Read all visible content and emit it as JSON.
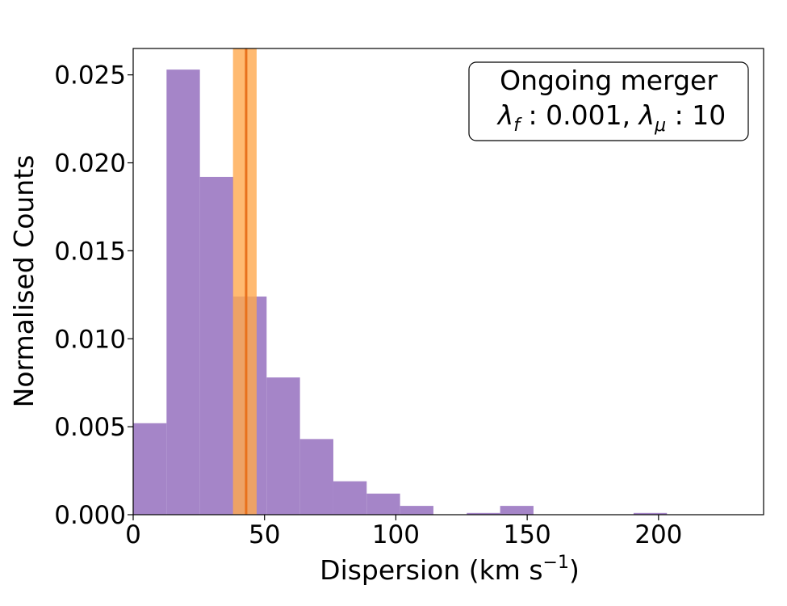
{
  "chart_data": {
    "type": "bar",
    "subtype": "histogram",
    "xlabel": "Dispersion (km s",
    "xlabel_sup": "−1",
    "xlabel_close": ")",
    "ylabel": "Normalised Counts",
    "xlim": [
      0,
      240
    ],
    "ylim": [
      0,
      0.0265
    ],
    "xticks": [
      0,
      50,
      100,
      150,
      200
    ],
    "xtick_labels": [
      "0",
      "50",
      "100",
      "150",
      "200"
    ],
    "yticks": [
      0,
      0.005,
      0.01,
      0.015,
      0.02,
      0.025
    ],
    "ytick_labels": [
      "0.000",
      "0.005",
      "0.010",
      "0.015",
      "0.020",
      "0.025"
    ],
    "bin_width": 12.7,
    "bins": [
      {
        "x0": 0.0,
        "x1": 12.7,
        "value": 0.0052
      },
      {
        "x0": 12.7,
        "x1": 25.4,
        "value": 0.0253
      },
      {
        "x0": 25.4,
        "x1": 38.1,
        "value": 0.0192
      },
      {
        "x0": 38.1,
        "x1": 50.8,
        "value": 0.0124
      },
      {
        "x0": 50.8,
        "x1": 63.5,
        "value": 0.0078
      },
      {
        "x0": 63.5,
        "x1": 76.2,
        "value": 0.0043
      },
      {
        "x0": 76.2,
        "x1": 88.9,
        "value": 0.0019
      },
      {
        "x0": 88.9,
        "x1": 101.6,
        "value": 0.0012
      },
      {
        "x0": 101.6,
        "x1": 114.3,
        "value": 0.0005
      },
      {
        "x0": 127.0,
        "x1": 139.7,
        "value": 0.0001
      },
      {
        "x0": 139.7,
        "x1": 152.4,
        "value": 0.0005
      },
      {
        "x0": 190.5,
        "x1": 203.2,
        "value": 0.0001
      }
    ],
    "marker": {
      "center": 43.0,
      "band": [
        38.0,
        47.0
      ],
      "line_color": "#e8711c",
      "band_color": "#ffa94d"
    },
    "histogram_color": "#a585c8",
    "legend": {
      "placement": "top-right",
      "line1": "Ongoing merger",
      "lf_symbol": "λ",
      "lf_sub": "f",
      "lf_value": " : 0.001, ",
      "lm_symbol": "λ",
      "lm_sub": "μ",
      "lm_value": " : 10"
    }
  }
}
